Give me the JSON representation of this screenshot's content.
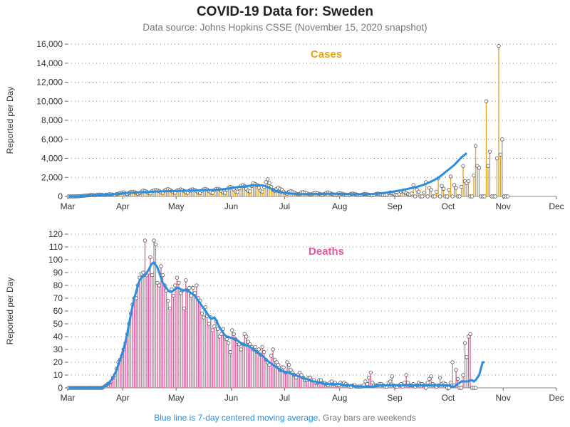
{
  "header": {
    "title": "COVID-19 Data for: Sweden",
    "subtitle": "Data source: Johns Hopkins CSSE (November 15, 2020 snapshot)"
  },
  "footer": {
    "blue_note": "Blue line is 7-day centered moving average,",
    "gray_note": "Gray bars are weekends"
  },
  "colors": {
    "cases": "#e8a317",
    "deaths": "#e8579c",
    "moving_average": "#2a8ee0",
    "weekend": "#999999"
  },
  "chart_data": [
    {
      "type": "bar",
      "title": "Cases",
      "ylabel": "Reported per Day",
      "ylim": [
        0,
        16000
      ],
      "yticks": [
        "0",
        "2,000",
        "4,000",
        "6,000",
        "8,000",
        "10,000",
        "12,000",
        "14,000",
        "16,000"
      ],
      "xticks": [
        "Mar",
        "Apr",
        "May",
        "Jun",
        "Jul",
        "Aug",
        "Sep",
        "Oct",
        "Nov",
        "Dec"
      ],
      "x_start": "2020-03-01",
      "values": [
        0,
        0,
        2,
        0,
        5,
        12,
        25,
        40,
        60,
        80,
        100,
        120,
        130,
        150,
        140,
        120,
        160,
        200,
        180,
        160,
        120,
        170,
        190,
        230,
        220,
        180,
        140,
        250,
        300,
        360,
        380,
        420,
        300,
        250,
        360,
        480,
        500,
        450,
        380,
        280,
        360,
        500,
        600,
        560,
        500,
        380,
        320,
        560,
        620,
        680,
        640,
        560,
        420,
        380,
        600,
        720,
        760,
        700,
        560,
        440,
        380,
        620,
        700,
        740,
        680,
        560,
        420,
        380,
        600,
        720,
        740,
        700,
        560,
        420,
        360,
        600,
        740,
        780,
        720,
        560,
        420,
        360,
        640,
        780,
        800,
        740,
        560,
        420,
        380,
        700,
        900,
        1000,
        940,
        720,
        520,
        480,
        860,
        1100,
        1200,
        1080,
        800,
        600,
        520,
        1100,
        1400,
        1300,
        1200,
        900,
        600,
        500,
        1000,
        1500,
        1800,
        1400,
        1000,
        700,
        600,
        800,
        900,
        800,
        700,
        500,
        350,
        300,
        500,
        550,
        500,
        400,
        300,
        250,
        240,
        420,
        450,
        400,
        340,
        260,
        220,
        240,
        350,
        380,
        330,
        280,
        220,
        200,
        260,
        380,
        420,
        360,
        280,
        220,
        180,
        220,
        330,
        320,
        280,
        220,
        180,
        160,
        200,
        280,
        300,
        260,
        200,
        160,
        140,
        180,
        250,
        260,
        230,
        180,
        140,
        120,
        160,
        260,
        300,
        260,
        200,
        150,
        120,
        180,
        360,
        420,
        360,
        260,
        180,
        140,
        220,
        500,
        600,
        500,
        360,
        240,
        200,
        300,
        1200,
        0,
        700,
        500,
        0,
        0,
        400,
        1500,
        0,
        900,
        700,
        0,
        0,
        500,
        1900,
        0,
        1100,
        800,
        0,
        0,
        700,
        2100,
        0,
        1200,
        900,
        0,
        0,
        1000,
        3200,
        1600,
        1400,
        1600,
        0,
        0,
        2200,
        5300,
        3200,
        3000,
        0,
        0,
        0,
        10000,
        3200,
        4700,
        0,
        0,
        0,
        4000,
        15800,
        4400,
        6000,
        0,
        0,
        0
      ],
      "ma": [
        0,
        0,
        1,
        3,
        6,
        12,
        20,
        35,
        55,
        75,
        95,
        115,
        125,
        130,
        135,
        140,
        150,
        155,
        160,
        165,
        170,
        180,
        190,
        195,
        200,
        210,
        230,
        250,
        275,
        300,
        320,
        340,
        355,
        370,
        380,
        390,
        400,
        405,
        410,
        420,
        430,
        440,
        450,
        460,
        470,
        480,
        490,
        500,
        510,
        520,
        525,
        530,
        535,
        540,
        545,
        550,
        555,
        560,
        565,
        570,
        575,
        580,
        585,
        590,
        595,
        600,
        605,
        610,
        615,
        620,
        625,
        630,
        635,
        640,
        645,
        650,
        655,
        660,
        665,
        670,
        675,
        680,
        690,
        700,
        710,
        720,
        740,
        760,
        780,
        800,
        830,
        860,
        890,
        920,
        950,
        980,
        1000,
        1020,
        1040,
        1060,
        1080,
        1100,
        1120,
        1140,
        1160,
        1170,
        1180,
        1180,
        1180,
        1160,
        1120,
        1060,
        980,
        900,
        800,
        700,
        600,
        530,
        480,
        440,
        400,
        380,
        360,
        340,
        320,
        300,
        290,
        280,
        270,
        260,
        250,
        245,
        240,
        240,
        240,
        240,
        245,
        250,
        255,
        260,
        262,
        265,
        268,
        270,
        272,
        275,
        278,
        280,
        280,
        280,
        278,
        275,
        272,
        270,
        265,
        260,
        255,
        250,
        245,
        240,
        238,
        236,
        235,
        234,
        234,
        235,
        238,
        240,
        245,
        250,
        255,
        260,
        270,
        280,
        300,
        320,
        340,
        360,
        380,
        400,
        430,
        460,
        490,
        520,
        550,
        580,
        610,
        640,
        680,
        720,
        760,
        800,
        840,
        880,
        920,
        960,
        1000,
        1060,
        1120,
        1180,
        1240,
        1320,
        1400,
        1480,
        1560,
        1650,
        1750,
        1850,
        1950,
        2100,
        2250,
        2400,
        2550,
        2700,
        2850,
        3000,
        3150,
        3300,
        3500,
        3700,
        3900,
        4100,
        4250,
        4400,
        4550
      ]
    },
    {
      "type": "bar",
      "title": "Deaths",
      "ylabel": "Reported per Day",
      "ylim": [
        0,
        120
      ],
      "yticks": [
        "0",
        "10",
        "20",
        "30",
        "40",
        "50",
        "60",
        "70",
        "80",
        "90",
        "100",
        "110",
        "120"
      ],
      "xticks": [
        "Mar",
        "Apr",
        "May",
        "Jun",
        "Jul",
        "Aug",
        "Sep",
        "Oct",
        "Nov",
        "Dec"
      ],
      "x_start": "2020-03-01",
      "values": [
        0,
        0,
        0,
        0,
        0,
        0,
        0,
        0,
        0,
        0,
        0,
        0,
        0,
        0,
        0,
        0,
        0,
        0,
        0,
        0,
        1,
        2,
        3,
        4,
        5,
        8,
        10,
        15,
        20,
        22,
        25,
        30,
        35,
        42,
        50,
        58,
        65,
        70,
        70,
        80,
        86,
        89,
        90,
        115,
        88,
        90,
        102,
        88,
        115,
        112,
        82,
        80,
        95,
        88,
        80,
        76,
        68,
        62,
        77,
        72,
        80,
        86,
        82,
        74,
        76,
        62,
        84,
        76,
        78,
        72,
        78,
        74,
        80,
        70,
        68,
        58,
        55,
        63,
        56,
        50,
        55,
        45,
        48,
        52,
        46,
        40,
        42,
        46,
        40,
        38,
        35,
        28,
        45,
        42,
        38,
        36,
        34,
        30,
        34,
        42,
        40,
        36,
        34,
        32,
        30,
        32,
        28,
        30,
        26,
        32,
        28,
        22,
        20,
        18,
        25,
        30,
        22,
        20,
        18,
        14,
        16,
        16,
        12,
        20,
        18,
        14,
        12,
        10,
        8,
        10,
        12,
        10,
        8,
        6,
        6,
        8,
        8,
        6,
        6,
        4,
        4,
        6,
        6,
        4,
        4,
        3,
        2,
        4,
        5,
        3,
        4,
        2,
        2,
        4,
        3,
        4,
        3,
        2,
        1,
        1,
        2,
        2,
        1,
        1,
        1,
        1,
        2,
        5,
        3,
        8,
        12,
        4,
        2,
        2,
        2,
        3,
        3,
        2,
        1,
        1,
        4,
        5,
        9,
        2,
        1,
        1,
        2,
        3,
        1,
        4,
        10,
        4,
        2,
        2,
        3,
        1,
        2,
        4,
        3,
        3,
        2,
        0,
        4,
        7,
        9,
        3,
        2,
        1,
        2,
        8,
        3,
        4,
        3,
        0,
        0,
        4,
        20,
        2,
        14,
        7,
        0,
        0,
        10,
        35,
        24,
        40,
        42,
        0,
        0,
        0
      ],
      "ma": [
        0,
        0,
        0,
        0,
        0,
        0,
        0,
        0,
        0,
        0,
        0,
        0,
        0,
        0,
        0,
        0,
        0,
        0,
        0,
        0,
        1,
        2,
        3,
        4,
        6,
        8,
        11,
        14,
        18,
        22,
        26,
        31,
        36,
        42,
        50,
        57,
        64,
        70,
        75,
        80,
        84,
        86,
        87,
        88,
        90,
        92,
        95,
        97,
        98,
        96,
        94,
        90,
        86,
        82,
        80,
        78,
        76,
        75,
        75,
        76,
        77,
        78,
        78,
        77,
        76,
        76,
        77,
        76,
        75,
        74,
        73,
        72,
        70,
        68,
        66,
        64,
        62,
        60,
        58,
        56,
        54,
        54,
        55,
        53,
        50,
        47,
        45,
        43,
        41,
        40,
        40,
        39,
        39,
        38,
        38,
        37,
        36,
        35,
        34,
        34,
        33,
        33,
        32,
        31,
        30,
        29,
        28,
        27,
        26,
        25,
        24,
        22,
        21,
        20,
        19,
        18,
        17,
        16,
        15,
        14,
        13,
        13,
        12,
        12,
        12,
        11,
        11,
        10,
        10,
        9,
        9,
        8,
        8,
        7,
        7,
        6,
        6,
        5,
        5,
        5,
        4,
        4,
        4,
        4,
        3,
        3,
        3,
        3,
        3,
        3,
        3,
        3,
        3,
        3,
        2,
        2,
        2,
        2,
        2,
        2,
        2,
        1,
        1,
        1,
        1,
        1,
        1,
        1,
        1,
        1,
        1,
        1,
        1,
        2,
        2,
        2,
        2,
        2,
        2,
        2,
        2,
        2,
        2,
        2,
        2,
        2,
        2,
        2,
        2,
        2,
        2,
        2,
        2,
        2,
        2,
        2,
        2,
        2,
        2,
        2,
        2,
        2,
        2,
        2,
        2,
        2,
        2,
        2,
        2,
        2,
        2,
        2,
        2,
        2,
        2,
        1,
        1,
        1,
        2,
        3,
        4,
        5,
        5,
        5,
        5,
        5,
        6,
        6,
        5,
        6,
        8,
        10,
        15,
        20,
        20
      ]
    }
  ]
}
